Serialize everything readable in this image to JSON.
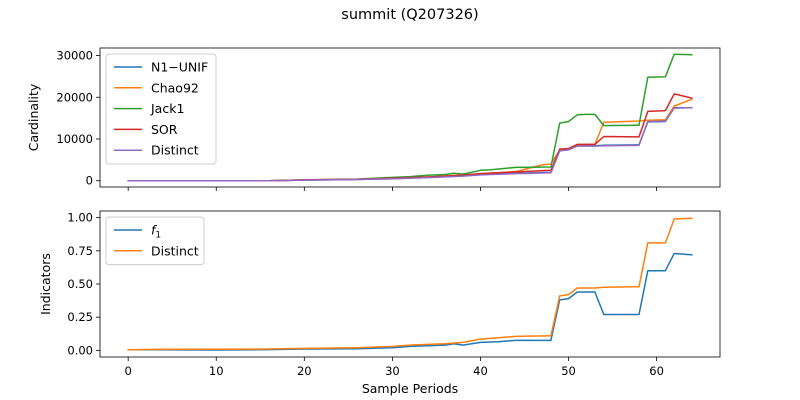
{
  "colors": {
    "blue": "#1f77b4",
    "orange": "#ff7f0e",
    "green": "#2ca02c",
    "red": "#d62728",
    "purple": "#9467bd"
  },
  "figure": {
    "suptitle": "summit (Q207326)"
  },
  "chart_data": [
    {
      "type": "line",
      "ylabel": "Cardinality",
      "xlabel": "",
      "xlim": [
        -3.2,
        67.2
      ],
      "ylim": [
        -1500,
        31800
      ],
      "xticks": [
        0,
        10,
        20,
        30,
        40,
        50,
        60
      ],
      "xtick_labels_shown": false,
      "yticks": [
        0,
        10000,
        20000,
        30000
      ],
      "ytick_labels": [
        "0",
        "10000",
        "20000",
        "30000"
      ],
      "legend": "upper-left",
      "grid": false,
      "series": [
        {
          "name": "N1−UNIF",
          "color": "blue",
          "x": [
            0,
            16,
            20,
            26,
            30,
            34,
            38,
            40,
            44,
            48,
            49,
            50,
            51,
            52,
            53,
            54,
            58,
            59,
            61,
            62,
            64
          ],
          "y": [
            0,
            0,
            150,
            300,
            500,
            800,
            1200,
            1500,
            1800,
            2000,
            7200,
            7400,
            8400,
            8400,
            8400,
            8500,
            8600,
            14100,
            14200,
            17500,
            17500
          ]
        },
        {
          "name": "Chao92",
          "color": "orange",
          "x": [
            0,
            16,
            20,
            26,
            30,
            34,
            38,
            40,
            44,
            47,
            48,
            49,
            50,
            51,
            52,
            53,
            54,
            58,
            59,
            61,
            62,
            64
          ],
          "y": [
            0,
            0,
            200,
            350,
            600,
            900,
            1400,
            1700,
            2200,
            3800,
            4000,
            7300,
            7500,
            8600,
            8700,
            8700,
            14000,
            14300,
            14500,
            14600,
            17900,
            19500
          ]
        },
        {
          "name": "Jack1",
          "color": "green",
          "x": [
            0,
            16,
            20,
            26,
            30,
            32,
            34,
            36,
            37,
            38,
            40,
            41,
            44,
            48,
            49,
            50,
            51,
            52,
            53,
            54,
            58,
            59,
            61,
            62,
            64
          ],
          "y": [
            0,
            0,
            200,
            400,
            800,
            1000,
            1300,
            1500,
            1800,
            1600,
            2500,
            2600,
            3200,
            3300,
            13800,
            14200,
            15800,
            15900,
            15900,
            13200,
            13300,
            24800,
            24900,
            30300,
            30200
          ]
        },
        {
          "name": "SOR",
          "color": "red",
          "x": [
            0,
            16,
            20,
            26,
            30,
            34,
            38,
            40,
            44,
            48,
            49,
            50,
            51,
            52,
            53,
            54,
            58,
            59,
            61,
            62,
            64
          ],
          "y": [
            0,
            0,
            200,
            350,
            600,
            900,
            1300,
            1700,
            2100,
            2500,
            7600,
            7700,
            8700,
            8700,
            8700,
            10600,
            10500,
            16600,
            16800,
            20800,
            19800
          ]
        },
        {
          "name": "Distinct",
          "color": "purple",
          "x": [
            0,
            16,
            20,
            26,
            30,
            34,
            38,
            40,
            44,
            48,
            49,
            50,
            51,
            52,
            53,
            54,
            58,
            59,
            61,
            62,
            64
          ],
          "y": [
            0,
            0,
            150,
            300,
            500,
            750,
            1100,
            1400,
            1700,
            1900,
            7200,
            7400,
            8300,
            8300,
            8300,
            8400,
            8500,
            14200,
            14300,
            17400,
            17500
          ]
        }
      ]
    },
    {
      "type": "line",
      "ylabel": "Indicators",
      "xlabel": "Sample Periods",
      "xlim": [
        -3.2,
        67.2
      ],
      "ylim": [
        -0.05,
        1.05
      ],
      "xticks": [
        0,
        10,
        20,
        30,
        40,
        50,
        60
      ],
      "xtick_labels": [
        "0",
        "10",
        "20",
        "30",
        "40",
        "50",
        "60"
      ],
      "yticks": [
        0.0,
        0.25,
        0.5,
        0.75,
        1.0
      ],
      "ytick_labels": [
        "0.00",
        "0.25",
        "0.50",
        "0.75",
        "1.00"
      ],
      "legend": "upper-left",
      "grid": false,
      "series": [
        {
          "name": "f",
          "name_subscript": "1",
          "color": "blue",
          "x": [
            0,
            4,
            10,
            16,
            20,
            26,
            30,
            32,
            34,
            36,
            37,
            38,
            40,
            42,
            44,
            48,
            49,
            50,
            51,
            52,
            53,
            54,
            58,
            59,
            61,
            62,
            64
          ],
          "y": [
            0.005,
            0.005,
            0.003,
            0.006,
            0.01,
            0.012,
            0.02,
            0.03,
            0.035,
            0.04,
            0.05,
            0.04,
            0.06,
            0.065,
            0.075,
            0.075,
            0.38,
            0.39,
            0.44,
            0.44,
            0.44,
            0.27,
            0.27,
            0.6,
            0.6,
            0.73,
            0.72
          ]
        },
        {
          "name": "Distinct",
          "color": "orange",
          "x": [
            0,
            4,
            10,
            16,
            20,
            26,
            30,
            32,
            34,
            36,
            38,
            40,
            42,
            44,
            48,
            49,
            50,
            51,
            52,
            53,
            54,
            58,
            59,
            61,
            62,
            64
          ],
          "y": [
            0.005,
            0.008,
            0.008,
            0.01,
            0.015,
            0.02,
            0.03,
            0.04,
            0.045,
            0.05,
            0.06,
            0.085,
            0.095,
            0.105,
            0.11,
            0.41,
            0.42,
            0.47,
            0.47,
            0.47,
            0.475,
            0.48,
            0.81,
            0.81,
            0.99,
            0.995
          ]
        }
      ]
    }
  ]
}
